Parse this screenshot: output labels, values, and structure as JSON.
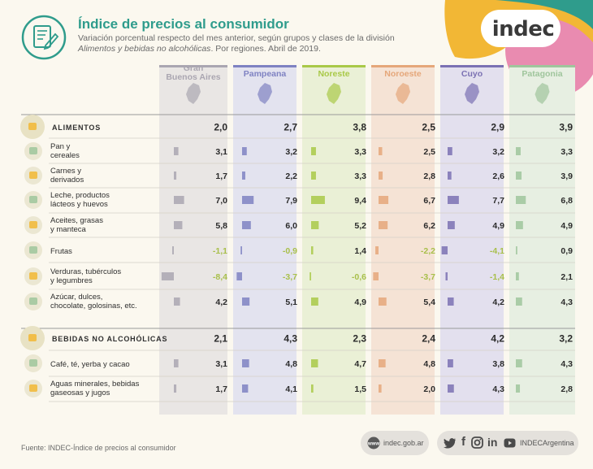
{
  "header": {
    "title": "Índice de precios al consumidor",
    "subtitle_a": "Variación porcentual respecto del mes anterior, según grupos y clases de la división ",
    "subtitle_b": "Alimentos y bebidas no alcohólicas",
    "subtitle_c": ". Por regiones. Abril de 2019."
  },
  "logo": {
    "text": "indec"
  },
  "footer": {
    "source": "Fuente: INDEC-Índice de precios al consumidor",
    "web": "indec.gob.ar",
    "handle": "INDECArgentina"
  },
  "colors": {
    "teal": "#2f9c8c",
    "Gran Buenos Aires": "#aaa6b1",
    "Pampeana": "#7f82c2",
    "Noreste": "#a9c948",
    "Noroeste": "#e5a77a",
    "Cuyo": "#7b71b3",
    "Patagonia": "#9fc59c"
  },
  "icons": [
    "doc-pencil-icon",
    "web-icon",
    "twitter-icon",
    "facebook-icon",
    "instagram-icon",
    "linkedin-icon",
    "youtube-icon"
  ],
  "chart_data": {
    "type": "table",
    "regions": [
      "Gran Buenos Aires",
      "Pampeana",
      "Noreste",
      "Noroeste",
      "Cuyo",
      "Patagonia"
    ],
    "rows": [
      {
        "label": "ALIMENTOS",
        "group": true,
        "values": [
          "2,0",
          "2,7",
          "3,8",
          "2,5",
          "2,9",
          "3,9"
        ],
        "icon": "food-basket-icon"
      },
      {
        "label": "Pan y\ncereales",
        "group": false,
        "values": [
          "3,1",
          "3,2",
          "3,3",
          "2,5",
          "3,2",
          "3,3"
        ],
        "icon": "bread-icon"
      },
      {
        "label": "Carnes y\nderivados",
        "group": false,
        "values": [
          "1,7",
          "2,2",
          "3,3",
          "2,8",
          "2,6",
          "3,9"
        ],
        "icon": "meat-icon"
      },
      {
        "label": "Leche, productos\nlácteos y huevos",
        "group": false,
        "values": [
          "7,0",
          "7,9",
          "9,4",
          "6,7",
          "7,7",
          "6,8"
        ],
        "icon": "milk-icon"
      },
      {
        "label": "Aceites, grasas\ny manteca",
        "group": false,
        "values": [
          "5,8",
          "6,0",
          "5,2",
          "6,2",
          "4,9",
          "4,9"
        ],
        "icon": "oil-icon"
      },
      {
        "label": "Frutas",
        "group": false,
        "values": [
          "-1,1",
          "-0,9",
          "1,4",
          "-2,2",
          "-4,1",
          "0,9"
        ],
        "icon": "fruit-icon"
      },
      {
        "label": "Verduras, tubérculos\ny legumbres",
        "group": false,
        "values": [
          "-8,4",
          "-3,7",
          "-0,6",
          "-3,7",
          "-1,4",
          "2,1"
        ],
        "icon": "vegetables-icon"
      },
      {
        "label": "Azúcar, dulces,\nchocolate, golosinas, etc.",
        "group": false,
        "values": [
          "4,2",
          "5,1",
          "4,9",
          "5,4",
          "4,2",
          "4,3"
        ],
        "icon": "sugar-icon"
      },
      {
        "label": "BEBIDAS NO ALCOHÓLICAS",
        "group": true,
        "values": [
          "2,1",
          "4,3",
          "2,3",
          "2,4",
          "4,2",
          "3,2"
        ],
        "icon": "bottles-icon"
      },
      {
        "label": "Café, té, yerba y cacao",
        "group": false,
        "values": [
          "3,1",
          "4,8",
          "4,7",
          "4,8",
          "3,8",
          "4,3"
        ],
        "icon": "coffee-icon"
      },
      {
        "label": "Aguas minerales, bebidas\ngaseosas y jugos",
        "group": false,
        "values": [
          "1,7",
          "4,1",
          "1,5",
          "2,0",
          "4,3",
          "2,8"
        ],
        "icon": "soda-icon"
      }
    ]
  }
}
